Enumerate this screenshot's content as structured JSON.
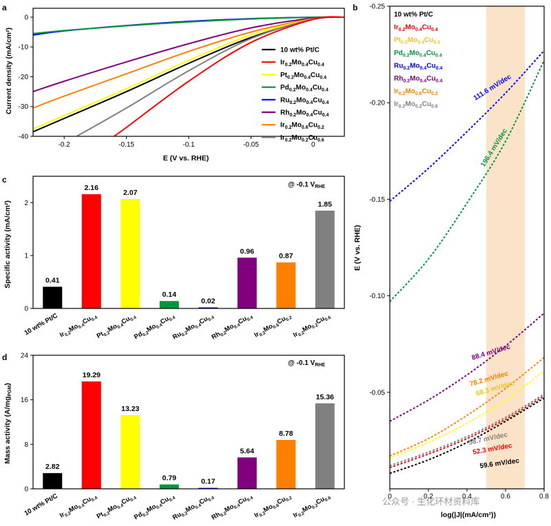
{
  "watermark": "公众号 · 生化环材资料库",
  "colors": {
    "Pt/C": "#000000",
    "Ir0.2Mo0.4Cu0.4": "#ff0000",
    "Pt0.2Mo0.4Cu0.4": "#ffff00",
    "Pd0.2Mo0.4Cu0.4": "#00963c",
    "Ru0.2Mo0.4Cu0.4": "#0000ff",
    "Rh0.2Mo0.4Cu0.4": "#800080",
    "Ir0.2Mo0.6Cu0.2": "#ff8000",
    "Ir0.2Mo0.2Cu0.6": "#808080",
    "highlight": "#fbe3c8"
  },
  "chart_data": [
    {
      "panel": "a",
      "type": "line",
      "xlabel": "E (V vs. RHE)",
      "ylabel": "Current density (mA/cm²)",
      "xlim": [
        -0.225,
        0.025
      ],
      "ylim": [
        -40,
        3
      ],
      "xticks": [
        "-0.2",
        "-0.15",
        "-0.1",
        "-0.05",
        "0"
      ],
      "yticks": [
        "0",
        "-10",
        "-20",
        "-30",
        "-40"
      ],
      "legend": [
        {
          "key": "Pt/C",
          "label": "10 wt% Pt/C"
        },
        {
          "key": "Ir0.2Mo0.4Cu0.4",
          "label": "Ir0.2Mo0.4Cu0.4"
        },
        {
          "key": "Pt0.2Mo0.4Cu0.4",
          "label": "Pt0.2Mo0.4Cu0.4"
        },
        {
          "key": "Pd0.2Mo0.4Cu0.4",
          "label": "Pd0.2Mo0.4Cu0.4"
        },
        {
          "key": "Ru0.2Mo0.4Cu0.4",
          "label": "Ru0.2Mo0.4Cu0.4"
        },
        {
          "key": "Rh0.2Mo0.4Cu0.4",
          "label": "Rh0.2Mo0.4Cu0.4"
        },
        {
          "key": "Ir0.2Mo0.6Cu0.2",
          "label": "Ir0.2Mo0.6Cu0.2"
        },
        {
          "key": "Ir0.2Mo0.2Cu0.6",
          "label": "Ir0.2Mo0.2Cu0.6"
        }
      ],
      "series": [
        {
          "key": "Ru0.2Mo0.4Cu0.4",
          "x": [
            -0.225,
            -0.2,
            -0.15,
            -0.1,
            -0.05,
            0,
            0.025
          ],
          "y": [
            -6,
            -4.6,
            -2.8,
            -1.4,
            -0.5,
            0,
            0
          ]
        },
        {
          "key": "Pd0.2Mo0.4Cu0.4",
          "x": [
            -0.225,
            -0.2,
            -0.15,
            -0.1,
            -0.05,
            0,
            0.025
          ],
          "y": [
            -5.5,
            -4.5,
            -2.9,
            -1.6,
            -0.6,
            0,
            0
          ]
        },
        {
          "key": "Rh0.2Mo0.4Cu0.4",
          "x": [
            -0.225,
            -0.2,
            -0.15,
            -0.1,
            -0.05,
            0,
            0.025
          ],
          "y": [
            -25,
            -21.5,
            -15,
            -8.9,
            -3.6,
            -0.3,
            0
          ]
        },
        {
          "key": "Ir0.2Mo0.6Cu0.2",
          "x": [
            -0.225,
            -0.2,
            -0.15,
            -0.1,
            -0.05,
            0,
            0.025
          ],
          "y": [
            -30.5,
            -26.5,
            -19,
            -11.5,
            -5,
            -0.5,
            0
          ]
        },
        {
          "key": "Pt0.2Mo0.4Cu0.4",
          "x": [
            -0.225,
            -0.2,
            -0.15,
            -0.1,
            -0.05,
            0,
            0.025
          ],
          "y": [
            -37.5,
            -33,
            -24,
            -14.5,
            -6,
            -0.6,
            0
          ]
        },
        {
          "key": "Pt/C",
          "x": [
            -0.225,
            -0.2,
            -0.15,
            -0.1,
            -0.05,
            0,
            0.025
          ],
          "y": [
            -38.5,
            -34,
            -25,
            -15.5,
            -6.8,
            -0.7,
            0
          ]
        },
        {
          "key": "Ir0.2Mo0.2Cu0.6",
          "x": [
            -0.19,
            -0.15,
            -0.1,
            -0.05,
            0,
            0.025
          ],
          "y": [
            -40,
            -30.5,
            -18,
            -7.2,
            -0.6,
            0
          ]
        },
        {
          "key": "Ir0.2Mo0.4Cu0.4",
          "x": [
            -0.16,
            -0.15,
            -0.1,
            -0.05,
            0,
            0.025
          ],
          "y": [
            -40,
            -37,
            -21.5,
            -8.5,
            -0.7,
            0
          ]
        }
      ]
    },
    {
      "panel": "b",
      "type": "line",
      "xlabel": "log(|J|(mA/cm²))",
      "ylabel": "E (V vs. RHE)",
      "xlim": [
        0,
        0.8
      ],
      "ylim": [
        -0.25,
        0
      ],
      "xticks": [
        "0",
        "0.2",
        "0.4",
        "0.6",
        "0.8"
      ],
      "yticks": [
        "-0.25",
        "-0.20",
        "-0.15",
        "-0.10",
        "-0.05"
      ],
      "highlight_x": [
        0.5,
        0.7
      ],
      "legend": [
        {
          "key": "Pt/C",
          "label": "10 wt% Pt/C"
        },
        {
          "key": "Ir0.2Mo0.4Cu0.4",
          "label": "Ir0.2Mo0.4Cu0.4"
        },
        {
          "key": "Pt0.2Mo0.4Cu0.4",
          "label": "Pt0.2Mo0.4Cu0.4"
        },
        {
          "key": "Pd0.2Mo0.4Cu0.4",
          "label": "Pd0.2Mo0.4Cu0.4"
        },
        {
          "key": "Ru0.2Mo0.4Cu0.4",
          "label": "Ru0.2Mo0.4Cu0.4"
        },
        {
          "key": "Rh0.2Mo0.4Cu0.4",
          "label": "Rh0.2Mo0.4Cu0.4"
        },
        {
          "key": "Ir0.2Mo0.6Cu0.2",
          "label": "Ir0.2Mo0.6Cu0.2"
        },
        {
          "key": "Ir0.2Mo0.2Cu0.6",
          "label": "Ir0.2Mo0.2Cu0.6"
        }
      ],
      "series": [
        {
          "key": "Ru0.2Mo0.4Cu0.4",
          "x": [
            0,
            0.2,
            0.4,
            0.6,
            0.8
          ],
          "y": [
            -0.149,
            -0.166,
            -0.185,
            -0.205,
            -0.227
          ],
          "slope_label": "111.6 mV/dec"
        },
        {
          "key": "Pd0.2Mo0.4Cu0.4",
          "x": [
            0,
            0.2,
            0.4,
            0.6,
            0.8
          ],
          "y": [
            -0.097,
            -0.119,
            -0.148,
            -0.18,
            -0.222
          ],
          "slope_label": "196.4 mV/dec"
        },
        {
          "key": "Rh0.2Mo0.4Cu0.4",
          "x": [
            0,
            0.2,
            0.4,
            0.6,
            0.8
          ],
          "y": [
            -0.035,
            -0.046,
            -0.059,
            -0.074,
            -0.091
          ],
          "slope_label": "88.4 mV/dec"
        },
        {
          "key": "Ir0.2Mo0.6Cu0.2",
          "x": [
            0,
            0.2,
            0.4,
            0.6,
            0.8
          ],
          "y": [
            -0.017,
            -0.026,
            -0.038,
            -0.052,
            -0.068
          ],
          "slope_label": "78.2 mV/dec"
        },
        {
          "key": "Pt0.2Mo0.4Cu0.4",
          "x": [
            0,
            0.2,
            0.4,
            0.6,
            0.8
          ],
          "y": [
            -0.016,
            -0.024,
            -0.034,
            -0.046,
            -0.061
          ],
          "slope_label": "68.3 mV/dec"
        },
        {
          "key": "Ir0.2Mo0.2Cu0.6",
          "x": [
            0,
            0.2,
            0.4,
            0.6,
            0.8
          ],
          "y": [
            -0.012,
            -0.019,
            -0.027,
            -0.037,
            -0.049
          ],
          "slope_label": "58.7 mV/dec"
        },
        {
          "key": "Ir0.2Mo0.4Cu0.4",
          "x": [
            0,
            0.2,
            0.4,
            0.6,
            0.8
          ],
          "y": [
            -0.011,
            -0.018,
            -0.026,
            -0.036,
            -0.048
          ],
          "slope_label": "52.3 mV/dec"
        },
        {
          "key": "Pt/C",
          "x": [
            0,
            0.2,
            0.4,
            0.6,
            0.8
          ],
          "y": [
            -0.008,
            -0.015,
            -0.024,
            -0.035,
            -0.047
          ],
          "slope_label": "59.6 mV/dec"
        }
      ]
    },
    {
      "panel": "c",
      "type": "bar",
      "ylabel": "Specific activity (mA/cm²)",
      "ylim": [
        0,
        2.5
      ],
      "yticks": [
        "0",
        "1",
        "2"
      ],
      "annotation": "@ -0.1 V",
      "annotation_sub": "RHE",
      "categories": [
        "10 wt% Pt/C",
        "Ir0.2Mo0.4Cu0.4",
        "Pt0.2Mo0.4Cu0.4",
        "Pd0.2Mo0.4Cu0.4",
        "Ru0.2Mo0.4Cu0.4",
        "Rh0.2Mo0.4Cu0.4",
        "Ir0.2Mo0.6Cu0.2",
        "Ir0.2Mo0.2Cu0.6"
      ],
      "values": [
        0.41,
        2.16,
        2.07,
        0.14,
        0.02,
        0.96,
        0.87,
        1.85
      ],
      "value_labels": [
        "0.41",
        "2.16",
        "2.07",
        "0.14",
        "0.02",
        "0.96",
        "0.87",
        "1.85"
      ]
    },
    {
      "panel": "d",
      "type": "bar",
      "ylabel": "Mass activity (A/mg",
      "ylabel_sub": "PGM",
      "ylabel_end": ")",
      "ylim": [
        0,
        24
      ],
      "yticks": [
        "0",
        "8",
        "16",
        "24"
      ],
      "annotation": "@ -0.1 V",
      "annotation_sub": "RHE",
      "categories": [
        "10 wt% Pt/C",
        "Ir0.2Mo0.4Cu0.4",
        "Pt0.2Mo0.4Cu0.4",
        "Pd0.2Mo0.4Cu0.4",
        "Ru0.2Mo0.4Cu0.4",
        "Rh0.2Mo0.4Cu0.4",
        "Ir0.2Mo0.6Cu0.2",
        "Ir0.2Mo0.2Cu0.6"
      ],
      "values": [
        2.82,
        19.29,
        13.23,
        0.79,
        0.17,
        5.64,
        8.78,
        15.36
      ],
      "value_labels": [
        "2.82",
        "19.29",
        "13.23",
        "0.79",
        "0.17",
        "5.64",
        "8.78",
        "15.36"
      ]
    }
  ]
}
